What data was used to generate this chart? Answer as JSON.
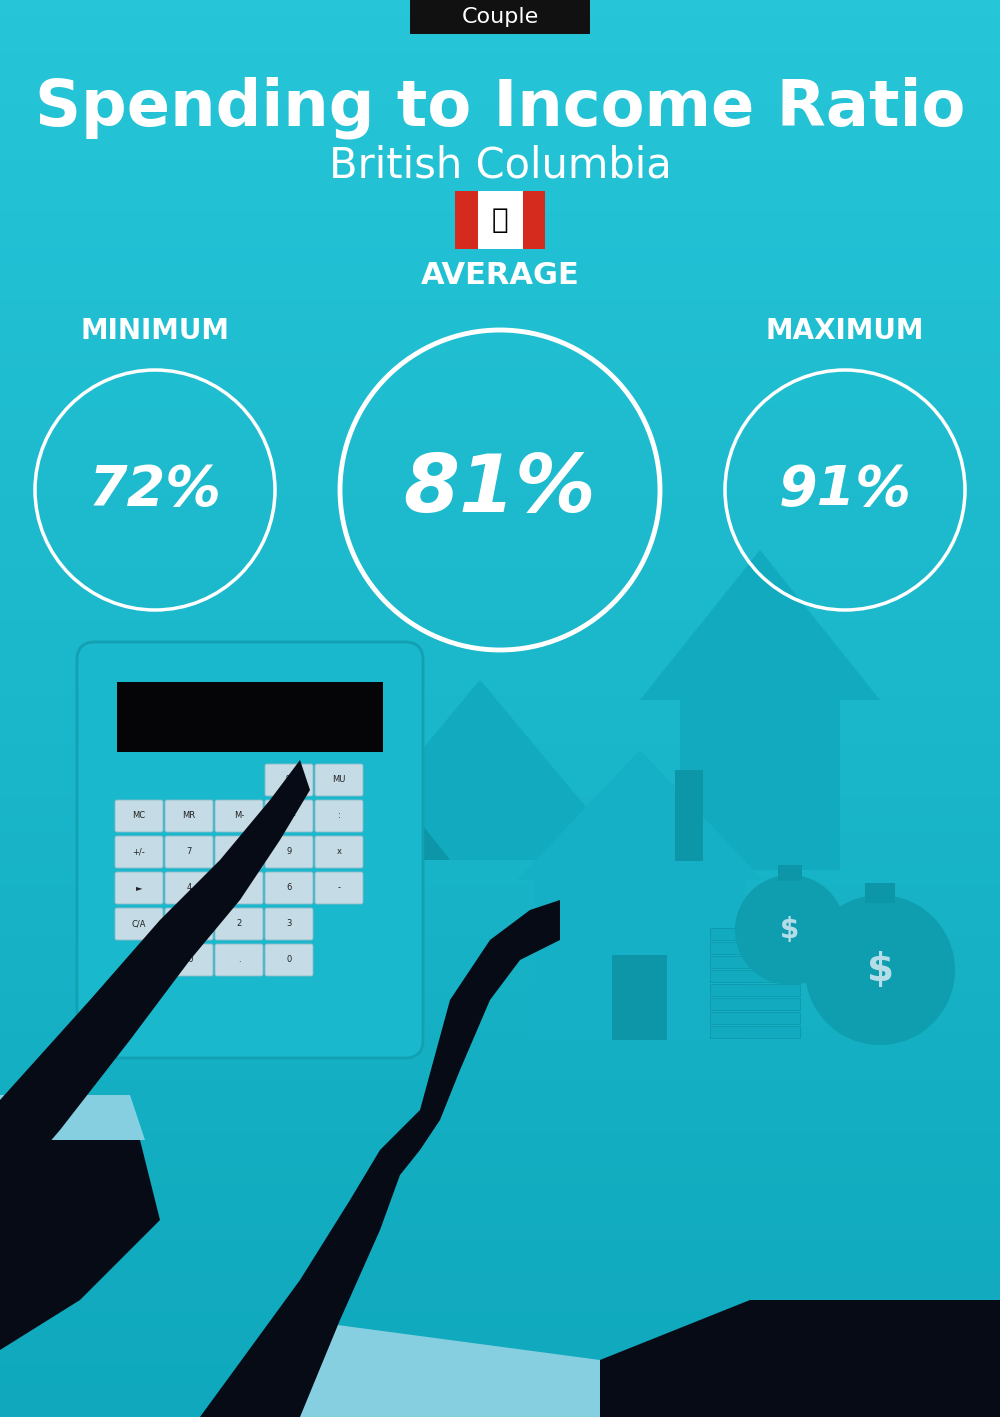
{
  "title": "Spending to Income Ratio",
  "subtitle": "British Columbia",
  "tag": "Couple",
  "bg_top": "#26c5d8",
  "bg_bottom": "#0fa8bc",
  "text_color": "#ffffff",
  "tag_bg": "#111111",
  "tag_text": "#ffffff",
  "min_label": "MINIMUM",
  "avg_label": "AVERAGE",
  "max_label": "MAXIMUM",
  "min_value": "72%",
  "avg_value": "81%",
  "max_value": "91%",
  "circle_color": "#ffffff",
  "title_fontsize": 46,
  "subtitle_fontsize": 30,
  "avg_label_fontsize": 22,
  "min_max_label_fontsize": 20,
  "value_fontsize_small": 40,
  "value_fontsize_large": 58,
  "dark_teal": "#0d95a8",
  "mid_teal": "#11aabf",
  "house_color": "#15b0c5",
  "silhouette_color": "#070b15",
  "cuff_color": "#85cfe0",
  "btn_face": "#c5dbe5",
  "btn_edge": "#90bbc8",
  "money_bag_color": "#0f9db0",
  "money_text_color": "#b5dde8",
  "flag_red": "#D52B1E",
  "fig_width": 10.0,
  "fig_height": 14.17
}
